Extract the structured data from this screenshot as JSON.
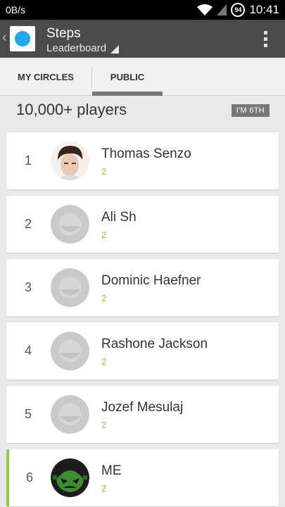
{
  "status": {
    "data_rate": "0B/s",
    "battery": "94",
    "time": "10:41"
  },
  "header": {
    "title": "Steps",
    "subtitle": "Leaderboard"
  },
  "tabs": [
    {
      "label": "MY CIRCLES",
      "selected": false
    },
    {
      "label": "PUBLIC",
      "selected": true
    }
  ],
  "summary": {
    "players": "10,000+ players",
    "my_rank": "I'M 6TH"
  },
  "leaderboard": [
    {
      "rank": "1",
      "name": "Thomas Senzo",
      "score": "2",
      "avatar": "photo-icon"
    },
    {
      "rank": "2",
      "name": "Ali Sh",
      "score": "2",
      "avatar": "default-avatar-icon"
    },
    {
      "rank": "3",
      "name": "Dominic Haefner",
      "score": "2",
      "avatar": "default-avatar-icon"
    },
    {
      "rank": "4",
      "name": "Rashone Jackson",
      "score": "2",
      "avatar": "default-avatar-icon"
    },
    {
      "rank": "5",
      "name": "Jozef Mesulaj",
      "score": "2",
      "avatar": "default-avatar-icon"
    },
    {
      "rank": "6",
      "name": "ME",
      "score": "2",
      "avatar": "game-avatar-icon"
    }
  ],
  "colors": {
    "accent": "#9dc63b",
    "action_bar": "#4b4b4b",
    "app_icon": "#1fa7f2"
  }
}
